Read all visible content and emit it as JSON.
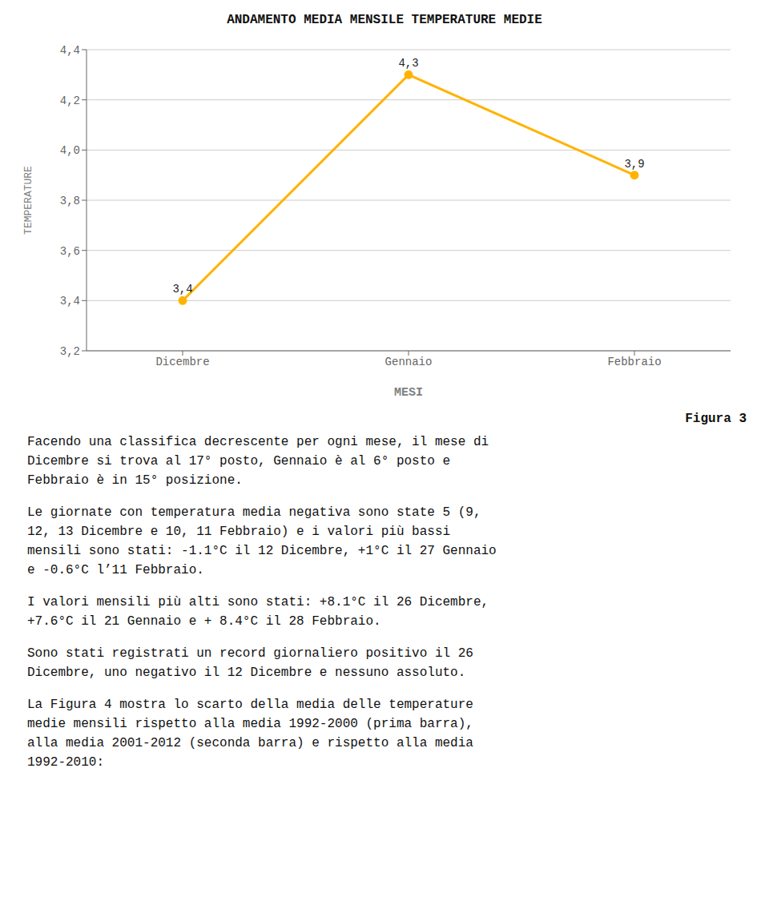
{
  "chart_data": {
    "type": "line",
    "title": "ANDAMENTO MEDIA MENSILE TEMPERATURE MEDIE",
    "x_label": "MESI",
    "y_label": "TEMPERATURE",
    "categories": [
      "Dicembre",
      "Gennaio",
      "Febbraio"
    ],
    "values": [
      3.4,
      4.3,
      3.9
    ],
    "value_labels": [
      "3,4",
      "4,3",
      "3,9"
    ],
    "data_labels": true,
    "color": "#FFB300",
    "marker": "circle",
    "ylim": [
      3.2,
      4.4
    ],
    "yticks": [
      {
        "value": 3.2,
        "label": "3,2"
      },
      {
        "value": 3.4,
        "label": "3,4"
      },
      {
        "value": 3.6,
        "label": "3,6"
      },
      {
        "value": 3.8,
        "label": "3,8"
      },
      {
        "value": 4.0,
        "label": "4,0"
      },
      {
        "value": 4.2,
        "label": "4,2"
      },
      {
        "value": 4.4,
        "label": "4,4"
      }
    ],
    "grid": true,
    "caption": "Figura 3",
    "paragraphs": [
      "Facendo una classifica decrescente per ogni mese, il mese di\nDicembre si trova al 17° posto, Gennaio è al 6° posto e\nFebbraio è in 15° posizione.",
      "Le giornate con temperatura media negativa sono state 5 (9,\n12, 13 Dicembre e 10, 11 Febbraio) e i valori più bassi\nmensili sono stati: -1.1°C il 12 Dicembre, +1°C il 27 Gennaio\ne -0.6°C l’11 Febbraio.",
      "I valori mensili più alti sono stati: +8.1°C il 26 Dicembre,\n+7.6°C il 21 Gennaio e + 8.4°C il 28 Febbraio.",
      "Sono stati registrati un record giornaliero positivo il 26\nDicembre, uno negativo il 12 Dicembre e nessuno assoluto.",
      "La Figura 4 mostra lo scarto della media delle temperature\nmedie mensili rispetto alla media 1992-2000 (prima barra),\nalla media 2001-2012 (seconda barra) e rispetto alla media\n1992-2010:"
    ]
  }
}
